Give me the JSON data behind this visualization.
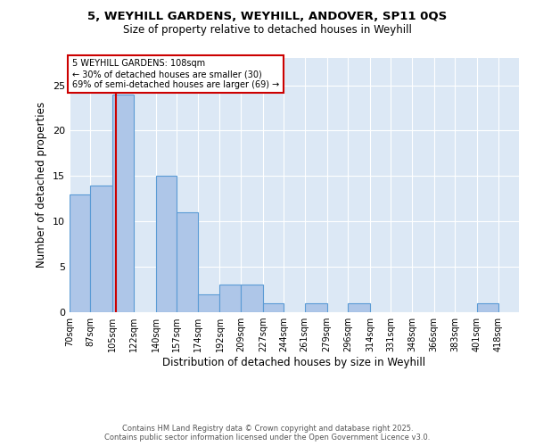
{
  "title_line1": "5, WEYHILL GARDENS, WEYHILL, ANDOVER, SP11 0QS",
  "title_line2": "Size of property relative to detached houses in Weyhill",
  "xlabel": "Distribution of detached houses by size in Weyhill",
  "ylabel": "Number of detached properties",
  "footer_line1": "Contains HM Land Registry data © Crown copyright and database right 2025.",
  "footer_line2": "Contains public sector information licensed under the Open Government Licence v3.0.",
  "bin_labels": [
    "70sqm",
    "87sqm",
    "105sqm",
    "122sqm",
    "140sqm",
    "157sqm",
    "174sqm",
    "192sqm",
    "209sqm",
    "227sqm",
    "244sqm",
    "261sqm",
    "279sqm",
    "296sqm",
    "314sqm",
    "331sqm",
    "348sqm",
    "366sqm",
    "383sqm",
    "401sqm",
    "418sqm"
  ],
  "bin_edges": [
    70,
    87,
    105,
    122,
    140,
    157,
    174,
    192,
    209,
    227,
    244,
    261,
    279,
    296,
    314,
    331,
    348,
    366,
    383,
    401,
    418,
    435
  ],
  "bar_heights": [
    13,
    14,
    24,
    0,
    15,
    11,
    2,
    3,
    3,
    1,
    0,
    1,
    0,
    1,
    0,
    0,
    0,
    0,
    0,
    1,
    0
  ],
  "bar_color": "#aec6e8",
  "bar_edge_color": "#5b9bd5",
  "property_size": 108,
  "annotation_title": "5 WEYHILL GARDENS: 108sqm",
  "annotation_line2": "← 30% of detached houses are smaller (30)",
  "annotation_line3": "69% of semi-detached houses are larger (69) →",
  "vline_color": "#cc0000",
  "ylim": [
    0,
    28
  ],
  "yticks": [
    0,
    5,
    10,
    15,
    20,
    25
  ],
  "background_color": "#dce8f5"
}
